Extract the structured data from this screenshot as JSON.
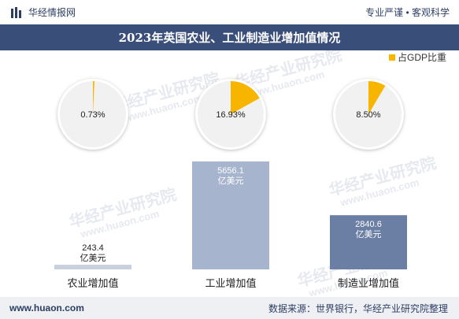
{
  "header": {
    "brand": "华经情报网",
    "tagline": "专业严谨 • 客观科学"
  },
  "title": "2023年英国农业、工业制造业增加值情况",
  "watermark": {
    "text": "华经产业研究院",
    "url": "www.huaon.com"
  },
  "chart_data": {
    "type": "bar",
    "categories": [
      "农业增加值",
      "工业增加值",
      "制造业增加值"
    ],
    "values": [
      243.4,
      5656.1,
      2840.6
    ],
    "value_labels": [
      "243.4\n亿美元",
      "5656.1\n亿美元",
      "2840.6\n亿美元"
    ],
    "unit": "亿美元",
    "pie_share": {
      "legend": "占GDP比重",
      "values": [
        0.73,
        16.93,
        8.5
      ],
      "labels": [
        "0.73%",
        "16.93%",
        "8.50%"
      ]
    },
    "colors": {
      "bars": [
        "#c8cfdd",
        "#a7b4cd",
        "#6b7ea3"
      ],
      "pie_share": "#f7b500",
      "pie_rest": "#f1f1f1"
    }
  },
  "footer": {
    "site": "www.huaon.com",
    "source": "数据来源：世界银行，华经产业研究院整理"
  }
}
